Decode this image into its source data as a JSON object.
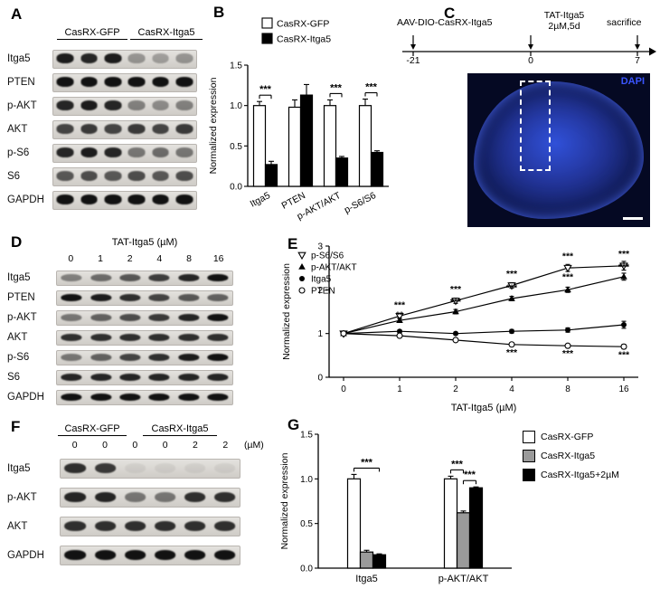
{
  "letters": {
    "A": "A",
    "B": "B",
    "C": "C",
    "D": "D",
    "E": "E",
    "F": "F",
    "G": "G"
  },
  "blots": {
    "A": {
      "groups": [
        "CasRX-GFP",
        "CasRX-Itga5"
      ],
      "rows": [
        {
          "label": "Itga5",
          "bands": [
            0.95,
            0.9,
            0.95,
            0.35,
            0.3,
            0.35
          ]
        },
        {
          "label": "PTEN",
          "bands": [
            1,
            1,
            1,
            1,
            1,
            1
          ]
        },
        {
          "label": "p-AKT",
          "bands": [
            0.9,
            0.95,
            0.9,
            0.45,
            0.4,
            0.45
          ]
        },
        {
          "label": "AKT",
          "bands": [
            0.75,
            0.8,
            0.75,
            0.8,
            0.75,
            0.8
          ]
        },
        {
          "label": "p-S6",
          "bands": [
            0.9,
            0.95,
            0.9,
            0.5,
            0.55,
            0.5
          ]
        },
        {
          "label": "S6",
          "bands": [
            0.65,
            0.7,
            0.65,
            0.7,
            0.65,
            0.7
          ]
        },
        {
          "label": "GAPDH",
          "bands": [
            1,
            1,
            1,
            1,
            1,
            1
          ]
        }
      ]
    },
    "D": {
      "title": "TAT-Itga5 (µM)",
      "lane_labels": [
        "0",
        "1",
        "2",
        "4",
        "8",
        "16"
      ],
      "rows": [
        {
          "label": "Itga5",
          "bands": [
            0.45,
            0.55,
            0.65,
            0.78,
            0.9,
            1
          ]
        },
        {
          "label": "PTEN",
          "bands": [
            1,
            0.95,
            0.85,
            0.75,
            0.65,
            0.6
          ]
        },
        {
          "label": "p-AKT",
          "bands": [
            0.5,
            0.6,
            0.7,
            0.8,
            0.9,
            1
          ]
        },
        {
          "label": "AKT",
          "bands": [
            0.85,
            0.85,
            0.85,
            0.85,
            0.85,
            0.85
          ]
        },
        {
          "label": "p-S6",
          "bands": [
            0.5,
            0.6,
            0.75,
            0.85,
            0.95,
            1
          ]
        },
        {
          "label": "S6",
          "bands": [
            0.9,
            0.9,
            0.9,
            0.9,
            0.9,
            0.9
          ]
        },
        {
          "label": "GAPDH",
          "bands": [
            1,
            1,
            1,
            1,
            1,
            1
          ]
        }
      ]
    },
    "F": {
      "groups": [
        "CasRX-GFP",
        "CasRX-Itga5"
      ],
      "lane_labels": [
        "0",
        "0",
        "0",
        "0",
        "2",
        "2"
      ],
      "unit": "(µM)",
      "rows": [
        {
          "label": "Itga5",
          "bands": [
            0.85,
            0.8,
            0.06,
            0.06,
            0.06,
            0.06
          ]
        },
        {
          "label": "p-AKT",
          "bands": [
            0.9,
            0.9,
            0.5,
            0.5,
            0.85,
            0.85
          ]
        },
        {
          "label": "AKT",
          "bands": [
            0.85,
            0.85,
            0.85,
            0.85,
            0.85,
            0.85
          ]
        },
        {
          "label": "GAPDH",
          "bands": [
            1,
            1,
            1,
            1,
            1,
            1
          ]
        }
      ]
    }
  },
  "timeline": {
    "aav_label": "AAV-DIO-CasRX-Itga5",
    "tat_label_line1": "TAT-Itga5",
    "tat_label_line2": "2µM,5d",
    "sacrifice_label": "sacrifice",
    "ticks": [
      "-21",
      "0",
      "7"
    ],
    "image_label": "DAPI",
    "dapi_label_color": "#3a55ff"
  },
  "chart_data": [
    {
      "id": "B",
      "type": "bar",
      "ylabel": "Normalized expression",
      "ylim": [
        0,
        1.5
      ],
      "yticks": [
        "0.0",
        "0.5",
        "1.0",
        "1.5"
      ],
      "categories": [
        "Itga5",
        "PTEN",
        "p-AKT/AKT",
        "p-S6/S6"
      ],
      "series": [
        {
          "name": "CasRX-GFP",
          "color": "#ffffff",
          "values": [
            1.0,
            0.98,
            1.0,
            1.0
          ],
          "errors": [
            0.05,
            0.09,
            0.07,
            0.08
          ]
        },
        {
          "name": "CasRX-Itga5",
          "color": "#000000",
          "values": [
            0.27,
            1.13,
            0.35,
            0.42
          ],
          "errors": [
            0.04,
            0.13,
            0.02,
            0.02
          ]
        }
      ],
      "significance": [
        {
          "cat": 0,
          "from": 0,
          "to": 1,
          "text": "***"
        },
        {
          "cat": 2,
          "from": 0,
          "to": 1,
          "text": "***"
        },
        {
          "cat": 3,
          "from": 0,
          "to": 1,
          "text": "***"
        }
      ],
      "legend_pos": "top"
    },
    {
      "id": "E",
      "type": "line",
      "xlabel": "TAT-Itga5 (µM)",
      "ylabel": "Normalized expression",
      "ylim": [
        0,
        3
      ],
      "yticks": [
        "0",
        "1",
        "2",
        "3"
      ],
      "x_labels": [
        "0",
        "1",
        "2",
        "4",
        "8",
        "16"
      ],
      "series": [
        {
          "name": "p-S6/S6",
          "marker": "triangle-down-open",
          "values": [
            1.0,
            1.4,
            1.75,
            2.1,
            2.5,
            2.55
          ],
          "errors": [
            0.02,
            0.05,
            0.06,
            0.06,
            0.08,
            0.1
          ]
        },
        {
          "name": "p-AKT/AKT",
          "marker": "triangle-up-filled",
          "values": [
            1.0,
            1.3,
            1.5,
            1.8,
            2.0,
            2.3
          ],
          "errors": [
            0.02,
            0.04,
            0.05,
            0.05,
            0.06,
            0.08
          ]
        },
        {
          "name": "Itga5",
          "marker": "circle-filled",
          "values": [
            1.0,
            1.05,
            1.0,
            1.05,
            1.08,
            1.2
          ],
          "errors": [
            0.02,
            0.03,
            0.03,
            0.04,
            0.05,
            0.08
          ]
        },
        {
          "name": "PTEN",
          "marker": "circle-open",
          "values": [
            1.0,
            0.95,
            0.85,
            0.75,
            0.72,
            0.7
          ],
          "errors": [
            0.02,
            0.03,
            0.03,
            0.04,
            0.04,
            0.05
          ]
        }
      ],
      "annotations": [
        {
          "xi": 1,
          "y": 1.58,
          "text": "***"
        },
        {
          "xi": 1,
          "y": 1.36,
          "text": "**"
        },
        {
          "xi": 2,
          "y": 1.95,
          "text": "***"
        },
        {
          "xi": 2,
          "y": 1.66,
          "text": "***"
        },
        {
          "xi": 3,
          "y": 2.3,
          "text": "***"
        },
        {
          "xi": 3,
          "y": 1.98,
          "text": "***"
        },
        {
          "xi": 4,
          "y": 2.7,
          "text": "***"
        },
        {
          "xi": 4,
          "y": 2.22,
          "text": "***"
        },
        {
          "xi": 5,
          "y": 2.75,
          "text": "***"
        },
        {
          "xi": 5,
          "y": 2.45,
          "text": "***"
        },
        {
          "xi": 3,
          "y": 0.5,
          "text": "***"
        },
        {
          "xi": 4,
          "y": 0.48,
          "text": "***"
        },
        {
          "xi": 5,
          "y": 0.45,
          "text": "***"
        }
      ],
      "legend_pos": "top-left"
    },
    {
      "id": "G",
      "type": "bar",
      "ylabel": "Normalized expression",
      "ylim": [
        0,
        1.5
      ],
      "yticks": [
        "0.0",
        "0.5",
        "1.0",
        "1.5"
      ],
      "categories": [
        "Itga5",
        "p-AKT/AKT"
      ],
      "series": [
        {
          "name": "CasRX-GFP",
          "color": "#ffffff",
          "values": [
            1.0,
            1.0
          ],
          "errors": [
            0.05,
            0.03
          ]
        },
        {
          "name": "CasRX-Itga5",
          "color": "#9a9a9a",
          "values": [
            0.18,
            0.62
          ],
          "errors": [
            0.02,
            0.02
          ]
        },
        {
          "name": "CasRX-Itga5+2µM",
          "color": "#000000",
          "values": [
            0.15,
            0.9
          ],
          "errors": [
            0.01,
            0.01
          ]
        }
      ],
      "significance": [
        {
          "cat": 0,
          "from": 0,
          "to": 2,
          "text": "***"
        },
        {
          "cat": 1,
          "from": 0,
          "to": 1,
          "text": "***"
        },
        {
          "cat": 1,
          "from": 1,
          "to": 2,
          "text": "***"
        }
      ],
      "legend_pos": "right"
    }
  ]
}
